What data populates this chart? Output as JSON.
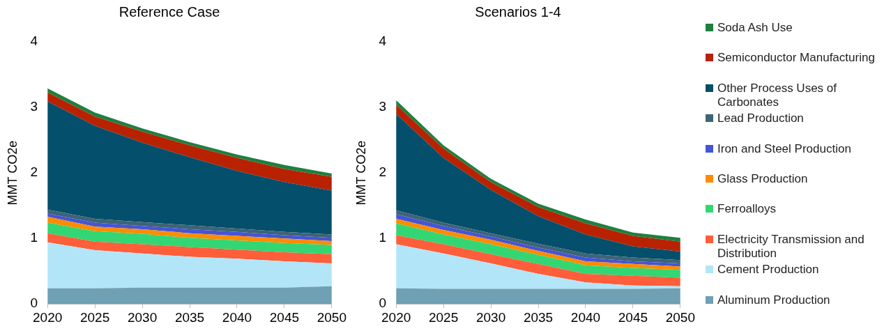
{
  "chart_data": [
    {
      "type": "area",
      "title": "Reference Case",
      "ylabel": "MMT CO2e",
      "stacked": true,
      "legend": "right",
      "marker": "none",
      "grid": false,
      "x": [
        2020,
        2025,
        2030,
        2035,
        2040,
        2045,
        2050
      ],
      "xlim": [
        2020,
        2050
      ],
      "xticks": [
        2020,
        2025,
        2030,
        2035,
        2040,
        2045,
        2050
      ],
      "ylim": [
        0,
        4
      ],
      "yticks": [
        0,
        1,
        2,
        3,
        4
      ],
      "series": [
        {
          "name": "Aluminum Production",
          "color": "#6fa0b4",
          "values": [
            0.24,
            0.24,
            0.25,
            0.25,
            0.25,
            0.25,
            0.27
          ]
        },
        {
          "name": "Cement Production",
          "color": "#b3e5f8",
          "values": [
            0.7,
            0.58,
            0.52,
            0.47,
            0.44,
            0.4,
            0.35
          ]
        },
        {
          "name": "Electricity Transmission and Distribution",
          "color": "#ff5e3a",
          "values": [
            0.14,
            0.13,
            0.14,
            0.15,
            0.14,
            0.14,
            0.14
          ]
        },
        {
          "name": "Ferroalloys",
          "color": "#33d672",
          "values": [
            0.16,
            0.16,
            0.16,
            0.14,
            0.14,
            0.14,
            0.14
          ]
        },
        {
          "name": "Glass Production",
          "color": "#ff8c00",
          "values": [
            0.09,
            0.07,
            0.07,
            0.07,
            0.07,
            0.07,
            0.06
          ]
        },
        {
          "name": "Iron and Steel Production",
          "color": "#4455d6",
          "values": [
            0.05,
            0.06,
            0.05,
            0.06,
            0.06,
            0.05,
            0.05
          ]
        },
        {
          "name": "Lead Production",
          "color": "#3e6475",
          "values": [
            0.06,
            0.06,
            0.06,
            0.06,
            0.05,
            0.05,
            0.05
          ]
        },
        {
          "name": "Other Process Uses of Carbonates",
          "color": "#044f6b",
          "values": [
            1.65,
            1.42,
            1.21,
            1.04,
            0.88,
            0.76,
            0.67
          ]
        },
        {
          "name": "Semiconductor Manufacturing",
          "color": "#b82200",
          "values": [
            0.14,
            0.14,
            0.17,
            0.18,
            0.2,
            0.2,
            0.21
          ]
        },
        {
          "name": "Soda Ash Use",
          "color": "#1e8040",
          "values": [
            0.06,
            0.06,
            0.05,
            0.05,
            0.05,
            0.06,
            0.05
          ]
        }
      ]
    },
    {
      "type": "area",
      "title": "Scenarios 1-4",
      "ylabel": "MMT CO2e",
      "stacked": true,
      "marker": "none",
      "grid": false,
      "x": [
        2020,
        2025,
        2030,
        2035,
        2040,
        2045,
        2050
      ],
      "xlim": [
        2020,
        2050
      ],
      "xticks": [
        2020,
        2025,
        2030,
        2035,
        2040,
        2045,
        2050
      ],
      "ylim": [
        0,
        4
      ],
      "yticks": [
        0,
        1,
        2,
        3,
        4
      ],
      "series": [
        {
          "color": "#6fa0b4",
          "values": [
            0.24,
            0.23,
            0.23,
            0.23,
            0.23,
            0.23,
            0.24
          ]
        },
        {
          "color": "#b3e5f8",
          "values": [
            0.67,
            0.54,
            0.39,
            0.23,
            0.1,
            0.05,
            0.03
          ]
        },
        {
          "color": "#ff5e3a",
          "values": [
            0.14,
            0.14,
            0.14,
            0.15,
            0.13,
            0.15,
            0.13
          ]
        },
        {
          "color": "#33d672",
          "values": [
            0.18,
            0.15,
            0.15,
            0.14,
            0.13,
            0.12,
            0.12
          ]
        },
        {
          "color": "#ff8c00",
          "values": [
            0.07,
            0.07,
            0.07,
            0.06,
            0.06,
            0.06,
            0.05
          ]
        },
        {
          "color": "#4455d6",
          "values": [
            0.07,
            0.06,
            0.05,
            0.05,
            0.06,
            0.04,
            0.05
          ]
        },
        {
          "color": "#3e6475",
          "values": [
            0.06,
            0.05,
            0.05,
            0.06,
            0.06,
            0.06,
            0.05
          ]
        },
        {
          "color": "#044f6b",
          "values": [
            1.47,
            0.99,
            0.66,
            0.42,
            0.29,
            0.17,
            0.13
          ]
        },
        {
          "color": "#b82200",
          "values": [
            0.14,
            0.14,
            0.12,
            0.14,
            0.17,
            0.16,
            0.15
          ]
        },
        {
          "color": "#1e8040",
          "values": [
            0.07,
            0.05,
            0.05,
            0.05,
            0.06,
            0.05,
            0.06
          ]
        }
      ]
    }
  ]
}
